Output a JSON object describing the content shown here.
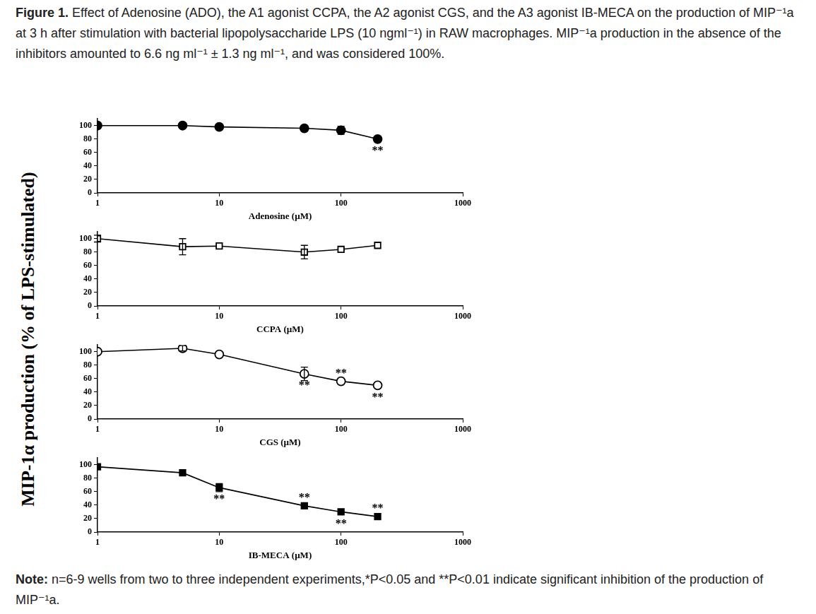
{
  "caption": {
    "label": "Figure 1.",
    "text": "Effect of Adenosine (ADO), the A1 agonist CCPA, the A2 agonist CGS, and the A3 agonist IB-MECA on the production of MIP⁻¹a at 3 h after stimulation with bacterial lipopolysaccharide LPS (10 ngml⁻¹) in RAW macrophages. MIP⁻¹a production in the absence of the inhibitors amounted to 6.6 ng ml⁻¹ ± 1.3 ng ml⁻¹, and was considered 100%."
  },
  "note": {
    "label": "Note:",
    "text": "n=6-9 wells from two to three independent experiments,*P<0.05 and **P<0.01 indicate significant inhibition of the production of MIP⁻¹a."
  },
  "ylabel": "MIP-1α production (% of LPS-stimulated)",
  "chart_data": [
    {
      "type": "line",
      "xlabel": "Adenosine (µM)",
      "log": "x",
      "grid": false,
      "xlim": [
        1,
        1000
      ],
      "xticks": [
        1,
        10,
        100,
        1000
      ],
      "ylim": [
        0,
        110
      ],
      "yticks": [
        0,
        20,
        40,
        60,
        80,
        100
      ],
      "x": [
        1,
        5,
        10,
        50,
        100,
        200
      ],
      "series": [
        {
          "name": "Adenosine",
          "color": "#000000",
          "marker": "circle",
          "values": [
            100,
            100,
            98,
            96,
            93,
            80
          ],
          "errors": [
            null,
            null,
            null,
            null,
            6,
            null
          ]
        }
      ],
      "annotations": [
        {
          "x": 200,
          "y": 80,
          "text": "**",
          "side": "below"
        }
      ]
    },
    {
      "type": "line",
      "xlabel": "CCPA (µM)",
      "log": "x",
      "grid": false,
      "xlim": [
        1,
        1000
      ],
      "xticks": [
        1,
        10,
        100,
        1000
      ],
      "ylim": [
        0,
        110
      ],
      "yticks": [
        0,
        20,
        40,
        60,
        80,
        100
      ],
      "x": [
        1,
        5,
        10,
        50,
        100,
        200
      ],
      "series": [
        {
          "name": "CCPA",
          "color": "#000000",
          "marker": "open-square",
          "values": [
            100,
            88,
            89,
            80,
            84,
            90
          ],
          "errors": [
            5,
            12,
            null,
            10,
            null,
            null
          ]
        }
      ],
      "annotations": []
    },
    {
      "type": "line",
      "xlabel": "CGS (µM)",
      "log": "x",
      "grid": false,
      "xlim": [
        1,
        1000
      ],
      "xticks": [
        1,
        10,
        100,
        1000
      ],
      "ylim": [
        0,
        110
      ],
      "yticks": [
        0,
        20,
        40,
        60,
        80,
        100
      ],
      "x": [
        1,
        5,
        10,
        50,
        100,
        200
      ],
      "series": [
        {
          "name": "CGS",
          "color": "#000000",
          "marker": "open-circle",
          "values": [
            100,
            105,
            96,
            67,
            56,
            50
          ],
          "errors": [
            null,
            4,
            null,
            10,
            null,
            null
          ]
        }
      ],
      "annotations": [
        {
          "x": 50,
          "y": 67,
          "text": "**",
          "side": "below"
        },
        {
          "x": 100,
          "y": 56,
          "text": "**",
          "side": "above"
        },
        {
          "x": 200,
          "y": 50,
          "text": "**",
          "side": "below"
        }
      ]
    },
    {
      "type": "line",
      "xlabel": "IB-MECA (µM)",
      "log": "x",
      "grid": false,
      "xlim": [
        1,
        1000
      ],
      "xticks": [
        1,
        10,
        100,
        1000
      ],
      "ylim": [
        0,
        110
      ],
      "yticks": [
        0,
        20,
        40,
        60,
        80,
        100
      ],
      "x": [
        1,
        5,
        10,
        50,
        100,
        200
      ],
      "series": [
        {
          "name": "IB-MECA",
          "color": "#000000",
          "marker": "square",
          "values": [
            97,
            88,
            66,
            39,
            30,
            23
          ],
          "errors": [
            null,
            null,
            6,
            null,
            null,
            null
          ]
        }
      ],
      "annotations": [
        {
          "x": 10,
          "y": 66,
          "text": "**",
          "side": "below"
        },
        {
          "x": 50,
          "y": 39,
          "text": "**",
          "side": "above"
        },
        {
          "x": 100,
          "y": 30,
          "text": "**",
          "side": "below"
        },
        {
          "x": 200,
          "y": 23,
          "text": "**",
          "side": "above"
        }
      ]
    }
  ]
}
